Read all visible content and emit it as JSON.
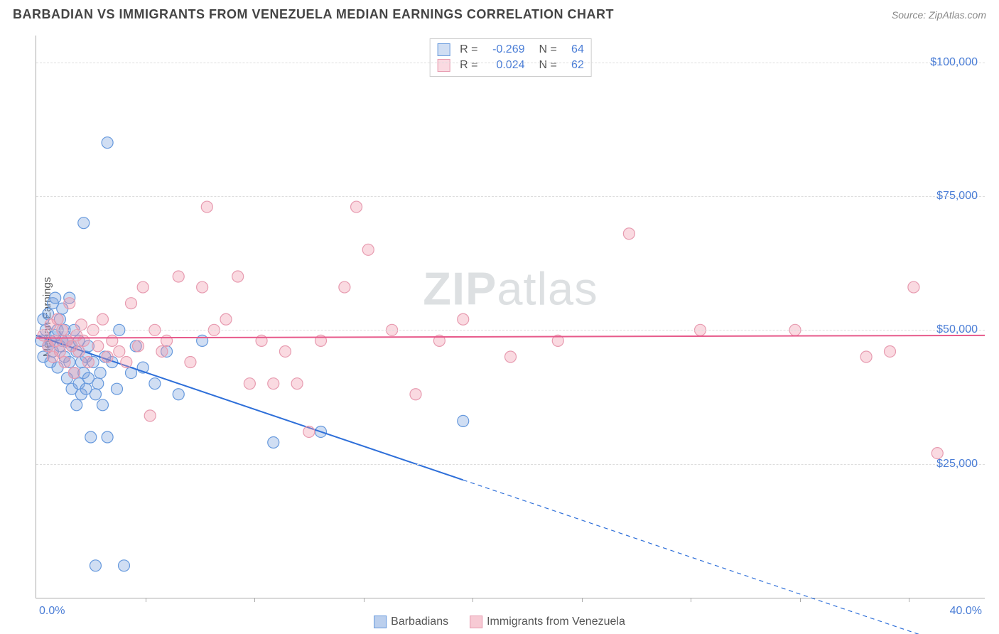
{
  "header": {
    "title": "BARBADIAN VS IMMIGRANTS FROM VENEZUELA MEDIAN EARNINGS CORRELATION CHART",
    "source": "Source: ZipAtlas.com"
  },
  "watermark_prefix": "ZIP",
  "watermark_suffix": "atlas",
  "chart": {
    "type": "scatter",
    "ylabel": "Median Earnings",
    "xlim": [
      0,
      40
    ],
    "ylim": [
      0,
      105000
    ],
    "x_ticks": [
      0,
      40
    ],
    "x_tick_labels": [
      "0.0%",
      "40.0%"
    ],
    "x_minor_ticks": [
      4.6,
      9.2,
      13.8,
      18.4,
      23.0,
      27.6,
      32.2,
      36.8
    ],
    "y_gridlines": [
      25000,
      50000,
      75000,
      100000
    ],
    "y_tick_labels": [
      "$25,000",
      "$50,000",
      "$75,000",
      "$100,000"
    ],
    "background_color": "#ffffff",
    "grid_color": "#dddddd",
    "axis_color": "#aaaaaa",
    "tick_label_color": "#4a7dd6",
    "marker_radius": 8,
    "marker_stroke_width": 1.2,
    "line_width": 2,
    "series": [
      {
        "name": "Barbadians",
        "fill_color": "rgba(120,160,220,0.35)",
        "stroke_color": "#6699dd",
        "line_color": "#2e6fd9",
        "R": "-0.269",
        "N": "64",
        "trend": {
          "x1": 0,
          "y1": 49000,
          "x2": 18,
          "y2": 22000,
          "dash_x2": 38,
          "dash_y2": -8000
        },
        "points": [
          [
            0.2,
            48000
          ],
          [
            0.3,
            52000
          ],
          [
            0.3,
            45000
          ],
          [
            0.4,
            50000
          ],
          [
            0.5,
            47000
          ],
          [
            0.5,
            53000
          ],
          [
            0.6,
            48000
          ],
          [
            0.6,
            44000
          ],
          [
            0.7,
            55000
          ],
          [
            0.7,
            46000
          ],
          [
            0.8,
            49000
          ],
          [
            0.8,
            56000
          ],
          [
            0.9,
            50000
          ],
          [
            0.9,
            43000
          ],
          [
            1.0,
            52000
          ],
          [
            1.0,
            47000
          ],
          [
            1.1,
            48000
          ],
          [
            1.1,
            54000
          ],
          [
            1.2,
            45000
          ],
          [
            1.2,
            50000
          ],
          [
            1.3,
            41000
          ],
          [
            1.3,
            48000
          ],
          [
            1.4,
            56000
          ],
          [
            1.4,
            44000
          ],
          [
            1.5,
            39000
          ],
          [
            1.5,
            47000
          ],
          [
            1.6,
            50000
          ],
          [
            1.6,
            42000
          ],
          [
            1.7,
            36000
          ],
          [
            1.7,
            46000
          ],
          [
            1.8,
            40000
          ],
          [
            1.8,
            48000
          ],
          [
            1.9,
            44000
          ],
          [
            1.9,
            38000
          ],
          [
            2.0,
            42000
          ],
          [
            2.0,
            70000
          ],
          [
            2.1,
            45000
          ],
          [
            2.1,
            39000
          ],
          [
            2.2,
            47000
          ],
          [
            2.2,
            41000
          ],
          [
            2.3,
            30000
          ],
          [
            2.4,
            44000
          ],
          [
            2.5,
            38000
          ],
          [
            2.5,
            6000
          ],
          [
            2.6,
            40000
          ],
          [
            2.7,
            42000
          ],
          [
            2.8,
            36000
          ],
          [
            2.9,
            45000
          ],
          [
            3.0,
            30000
          ],
          [
            3.0,
            85000
          ],
          [
            3.2,
            44000
          ],
          [
            3.4,
            39000
          ],
          [
            3.5,
            50000
          ],
          [
            3.7,
            6000
          ],
          [
            4.0,
            42000
          ],
          [
            4.2,
            47000
          ],
          [
            4.5,
            43000
          ],
          [
            5.0,
            40000
          ],
          [
            5.5,
            46000
          ],
          [
            6.0,
            38000
          ],
          [
            7.0,
            48000
          ],
          [
            10.0,
            29000
          ],
          [
            12.0,
            31000
          ],
          [
            18.0,
            33000
          ]
        ]
      },
      {
        "name": "Immigrants from Venezuela",
        "fill_color": "rgba(240,150,170,0.35)",
        "stroke_color": "#e79bb0",
        "line_color": "#e75a8b",
        "R": "0.024",
        "N": "62",
        "trend": {
          "x1": 0,
          "y1": 48500,
          "x2": 40,
          "y2": 49000
        },
        "points": [
          [
            0.3,
            49000
          ],
          [
            0.5,
            47000
          ],
          [
            0.6,
            51000
          ],
          [
            0.7,
            45000
          ],
          [
            0.8,
            48000
          ],
          [
            0.9,
            52000
          ],
          [
            1.0,
            46000
          ],
          [
            1.1,
            50000
          ],
          [
            1.2,
            44000
          ],
          [
            1.3,
            48000
          ],
          [
            1.4,
            55000
          ],
          [
            1.5,
            47000
          ],
          [
            1.6,
            42000
          ],
          [
            1.7,
            49000
          ],
          [
            1.8,
            46000
          ],
          [
            1.9,
            51000
          ],
          [
            2.0,
            48000
          ],
          [
            2.2,
            44000
          ],
          [
            2.4,
            50000
          ],
          [
            2.6,
            47000
          ],
          [
            2.8,
            52000
          ],
          [
            3.0,
            45000
          ],
          [
            3.2,
            48000
          ],
          [
            3.5,
            46000
          ],
          [
            3.8,
            44000
          ],
          [
            4.0,
            55000
          ],
          [
            4.3,
            47000
          ],
          [
            4.5,
            58000
          ],
          [
            4.8,
            34000
          ],
          [
            5.0,
            50000
          ],
          [
            5.3,
            46000
          ],
          [
            5.5,
            48000
          ],
          [
            6.0,
            60000
          ],
          [
            6.5,
            44000
          ],
          [
            7.0,
            58000
          ],
          [
            7.2,
            73000
          ],
          [
            7.5,
            50000
          ],
          [
            8.0,
            52000
          ],
          [
            8.5,
            60000
          ],
          [
            9.0,
            40000
          ],
          [
            9.5,
            48000
          ],
          [
            10.0,
            40000
          ],
          [
            10.5,
            46000
          ],
          [
            11.0,
            40000
          ],
          [
            11.5,
            31000
          ],
          [
            12.0,
            48000
          ],
          [
            13.0,
            58000
          ],
          [
            13.5,
            73000
          ],
          [
            14.0,
            65000
          ],
          [
            15.0,
            50000
          ],
          [
            16.0,
            38000
          ],
          [
            17.0,
            48000
          ],
          [
            18.0,
            52000
          ],
          [
            20.0,
            45000
          ],
          [
            22.0,
            48000
          ],
          [
            25.0,
            68000
          ],
          [
            28.0,
            50000
          ],
          [
            32.0,
            50000
          ],
          [
            35.0,
            45000
          ],
          [
            36.0,
            46000
          ],
          [
            37.0,
            58000
          ],
          [
            38.0,
            27000
          ]
        ]
      }
    ],
    "legend": {
      "stats_labels": {
        "R": "R =",
        "N": "N ="
      }
    }
  },
  "footer_legend": [
    {
      "label": "Barbadians",
      "fill": "rgba(120,160,220,0.5)",
      "border": "#6699dd"
    },
    {
      "label": "Immigrants from Venezuela",
      "fill": "rgba(240,150,170,0.5)",
      "border": "#e79bb0"
    }
  ]
}
